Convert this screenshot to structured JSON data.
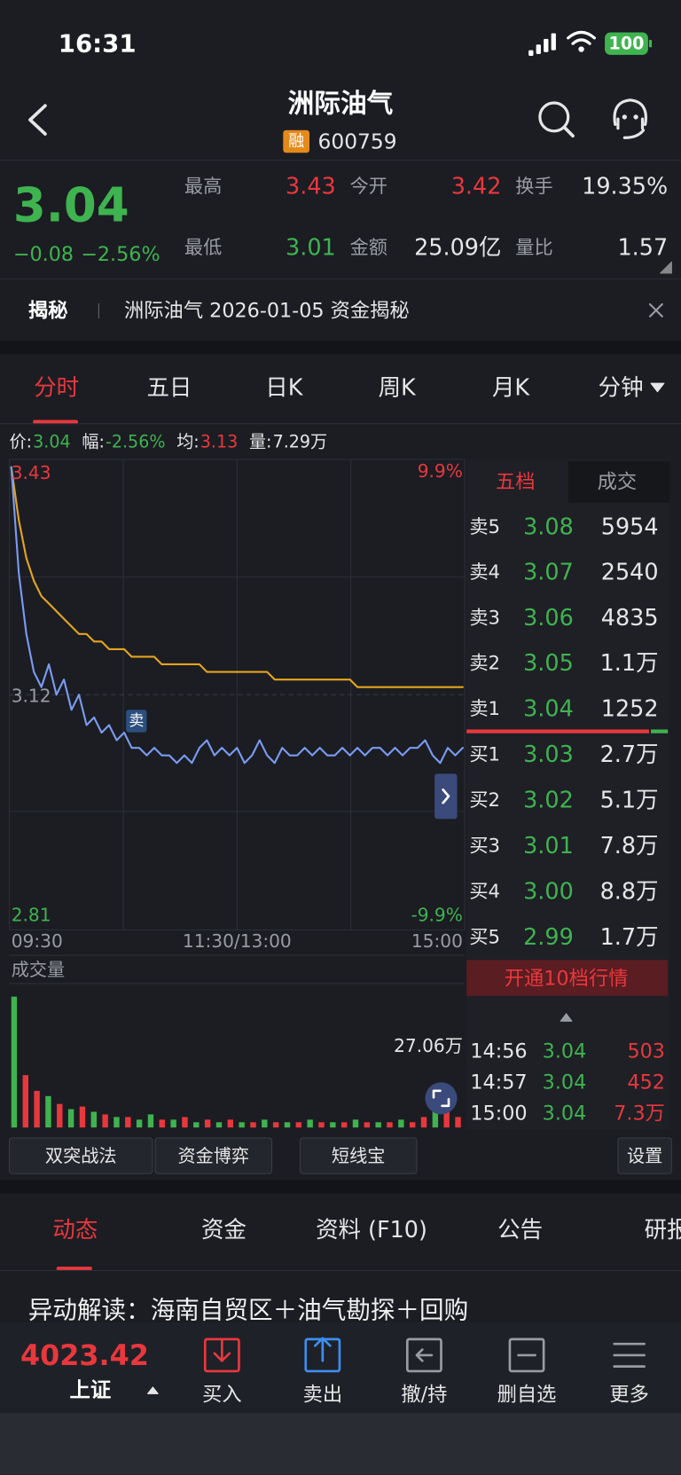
{
  "status_bar": {
    "time": "16:31",
    "battery": "100"
  },
  "header": {
    "title": "洲际油气",
    "badge": "融",
    "code": "600759"
  },
  "quote": {
    "price": "3.04",
    "change": "−0.08",
    "change_pct": "−2.56%",
    "stats": [
      {
        "label": "最高",
        "value": "3.43",
        "color": "#e8383d"
      },
      {
        "label": "今开",
        "value": "3.42",
        "color": "#e8383d"
      },
      {
        "label": "换手",
        "value": "19.35%",
        "color": "#e6e6e6"
      },
      {
        "label": "最低",
        "value": "3.01",
        "color": "#3fb34f"
      },
      {
        "label": "金额",
        "value": "25.09亿",
        "color": "#e6e6e6"
      },
      {
        "label": "量比",
        "value": "1.57",
        "color": "#e6e6e6"
      }
    ]
  },
  "banner": {
    "tag": "揭秘",
    "text": "洲际油气 2026-01-05 资金揭秘"
  },
  "chart_tabs": [
    "分时",
    "五日",
    "日K",
    "周K",
    "月K",
    "分钟"
  ],
  "info": [
    {
      "label": "价:",
      "value": "3.04",
      "color": "#3fb34f"
    },
    {
      "label": "幅:",
      "value": "-2.56%",
      "color": "#3fb34f"
    },
    {
      "label": "均:",
      "value": "3.13",
      "color": "#e8383d"
    },
    {
      "label": "量:",
      "value": "7.29万",
      "color": "#e6e6e6"
    }
  ],
  "intraday": {
    "ylim": [
      2.81,
      3.43
    ],
    "top_label": "3.43",
    "mid_label": "3.12",
    "bottom_label": "2.81",
    "top_pct": "9.9%",
    "bottom_pct": "-9.9%",
    "x_labels": [
      "09:30",
      "11:30/13:00",
      "15:00"
    ],
    "marker": "卖",
    "price_color": "#7b9bf0",
    "avg_color": "#e6a41e",
    "price": [
      3.42,
      3.28,
      3.2,
      3.15,
      3.13,
      3.16,
      3.12,
      3.14,
      3.1,
      3.12,
      3.08,
      3.09,
      3.07,
      3.08,
      3.06,
      3.07,
      3.05,
      3.05,
      3.04,
      3.05,
      3.04,
      3.04,
      3.03,
      3.04,
      3.03,
      3.05,
      3.06,
      3.04,
      3.05,
      3.04,
      3.05,
      3.03,
      3.04,
      3.06,
      3.04,
      3.03,
      3.05,
      3.04,
      3.04,
      3.05,
      3.04,
      3.05,
      3.04,
      3.04,
      3.05,
      3.04,
      3.05,
      3.04,
      3.05,
      3.05,
      3.04,
      3.05,
      3.04,
      3.05,
      3.05,
      3.06,
      3.04,
      3.03,
      3.05,
      3.04,
      3.05
    ],
    "avg": [
      3.42,
      3.35,
      3.3,
      3.27,
      3.25,
      3.24,
      3.23,
      3.22,
      3.21,
      3.2,
      3.2,
      3.19,
      3.19,
      3.18,
      3.18,
      3.18,
      3.17,
      3.17,
      3.17,
      3.17,
      3.16,
      3.16,
      3.16,
      3.16,
      3.16,
      3.16,
      3.15,
      3.15,
      3.15,
      3.15,
      3.15,
      3.15,
      3.15,
      3.15,
      3.15,
      3.14,
      3.14,
      3.14,
      3.14,
      3.14,
      3.14,
      3.14,
      3.14,
      3.14,
      3.14,
      3.14,
      3.13,
      3.13,
      3.13,
      3.13,
      3.13,
      3.13,
      3.13,
      3.13,
      3.13,
      3.13,
      3.13,
      3.13,
      3.13,
      3.13,
      3.13
    ]
  },
  "volume": {
    "label": "成交量",
    "max_label": "27.06万",
    "ylim": [
      0,
      55
    ],
    "values": [
      50,
      20,
      14,
      12,
      9,
      7,
      8,
      6,
      5,
      4,
      4,
      3,
      5,
      3,
      3,
      4,
      2,
      3,
      2,
      3,
      2,
      2,
      3,
      2,
      2,
      2,
      3,
      2,
      2,
      2,
      3,
      2,
      2,
      2,
      3,
      2,
      4,
      9,
      6,
      4
    ],
    "colors": [
      "#3fb34f",
      "#e8383d",
      "#e8383d",
      "#3fb34f",
      "#e8383d",
      "#3fb34f",
      "#e8383d",
      "#3fb34f",
      "#e8383d",
      "#3fb34f",
      "#e8383d",
      "#3fb34f",
      "#3fb34f",
      "#e8383d",
      "#3fb34f",
      "#e8383d",
      "#3fb34f",
      "#e8383d",
      "#3fb34f",
      "#e8383d",
      "#3fb34f",
      "#e8383d",
      "#3fb34f",
      "#e8383d",
      "#3fb34f",
      "#e8383d",
      "#3fb34f",
      "#e8383d",
      "#3fb34f",
      "#e8383d",
      "#3fb34f",
      "#e8383d",
      "#3fb34f",
      "#e8383d",
      "#3fb34f",
      "#e8383d",
      "#e8383d",
      "#3fb34f",
      "#e8383d",
      "#e8383d"
    ]
  },
  "order_book": {
    "tabs": [
      "五档",
      "成交"
    ],
    "asks": [
      {
        "label": "卖5",
        "price": "3.08",
        "volume": "5954"
      },
      {
        "label": "卖4",
        "price": "3.07",
        "volume": "2540"
      },
      {
        "label": "卖3",
        "price": "3.06",
        "volume": "4835"
      },
      {
        "label": "卖2",
        "price": "3.05",
        "volume": "1.1万"
      },
      {
        "label": "卖1",
        "price": "3.04",
        "volume": "1252"
      }
    ],
    "bids": [
      {
        "label": "买1",
        "price": "3.03",
        "volume": "2.7万"
      },
      {
        "label": "买2",
        "price": "3.02",
        "volume": "5.1万"
      },
      {
        "label": "买3",
        "price": "3.01",
        "volume": "7.8万"
      },
      {
        "label": "买4",
        "price": "3.00",
        "volume": "8.8万"
      },
      {
        "label": "买5",
        "price": "2.99",
        "volume": "1.7万"
      }
    ],
    "upgrade": "开通10档行情",
    "trades": [
      {
        "time": "14:56",
        "price": "3.04",
        "volume": "503"
      },
      {
        "time": "14:57",
        "price": "3.04",
        "volume": "452"
      },
      {
        "time": "15:00",
        "price": "3.04",
        "volume": "7.3万"
      }
    ]
  },
  "tools": [
    "双突战法",
    "资金博弈",
    "短线宝",
    "设置"
  ],
  "info_tabs": [
    "动态",
    "资金",
    "资料 (F10)",
    "公告",
    "研报"
  ],
  "news": "异动解读：海南自贸区＋油气勘探＋回购",
  "bottom_bar": {
    "index_value": "4023.42",
    "index_name": "上证",
    "actions": [
      "买入",
      "卖出",
      "撤/持",
      "删自选",
      "更多"
    ]
  }
}
